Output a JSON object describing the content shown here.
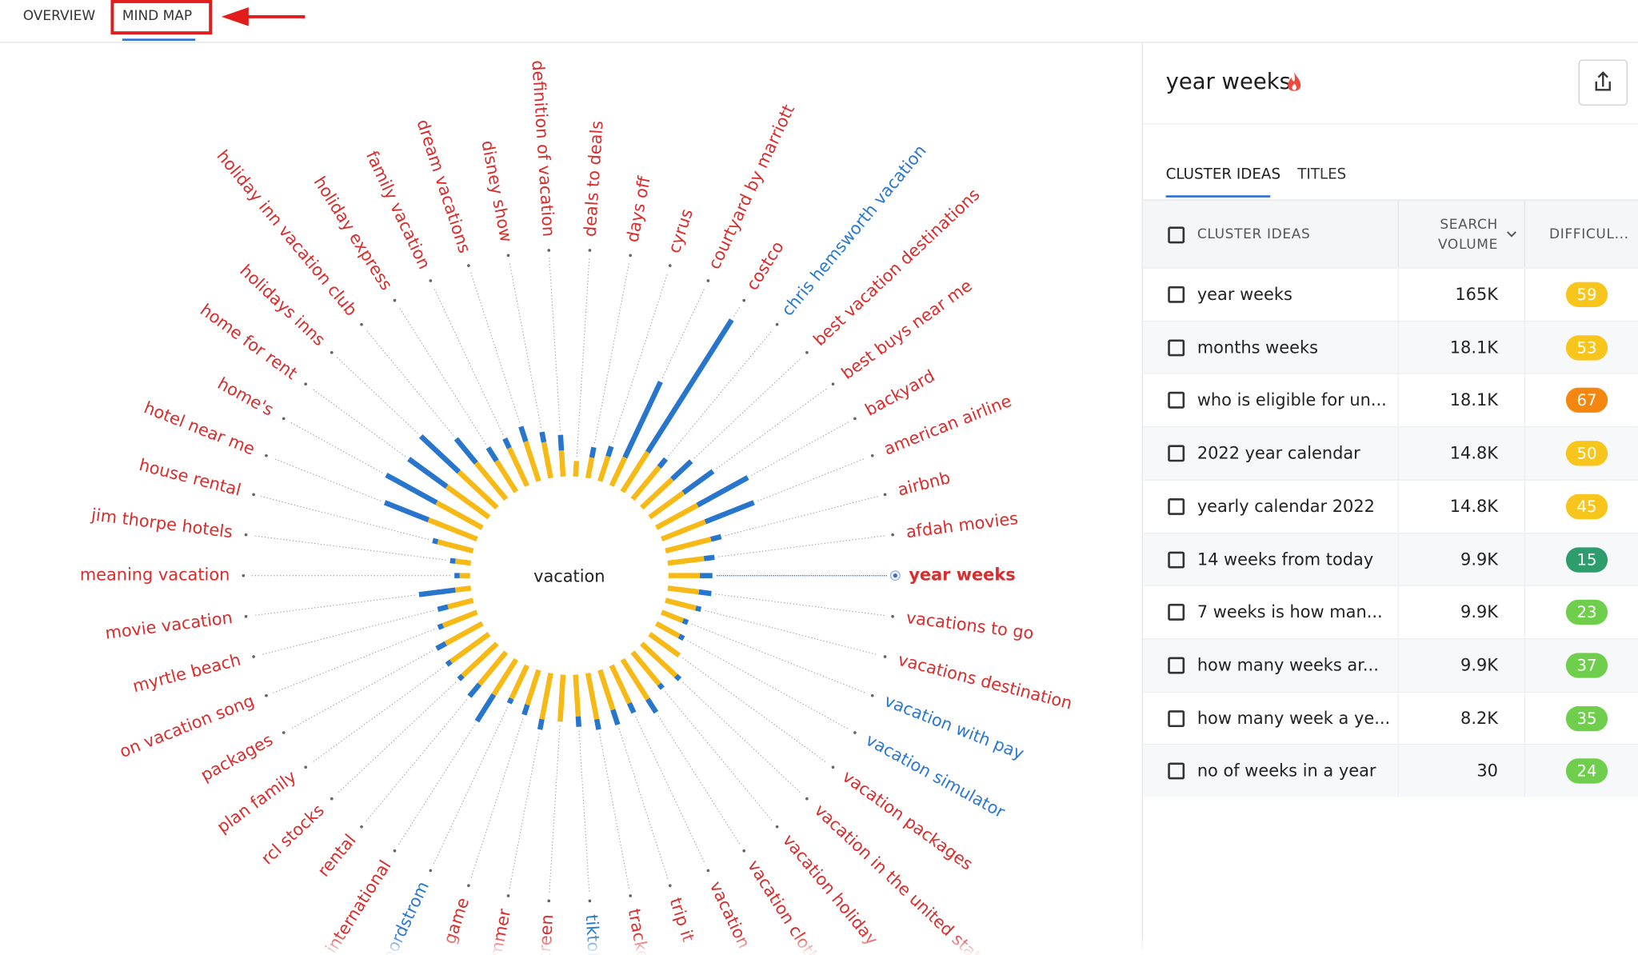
{
  "tabs": [
    "OVERVIEW",
    "MIND MAP"
  ],
  "mindmap": {
    "center": "vacation",
    "spokes": [
      {
        "label": "year weeks",
        "color": "#d92d2d",
        "yellow": 30,
        "blue": 12,
        "selected": true
      },
      {
        "label": "vacations to go",
        "color": "#d92d2d",
        "yellow": 30,
        "blue": 12
      },
      {
        "label": "vacations destination",
        "color": "#d92d2d",
        "yellow": 30,
        "blue": 5
      },
      {
        "label": "vacation with pay",
        "color": "#2b78d0",
        "yellow": 22,
        "blue": 5
      },
      {
        "label": "vacation simulator",
        "color": "#2b78d0",
        "yellow": 25,
        "blue": 5
      },
      {
        "label": "vacation packages",
        "color": "#d92d2d",
        "yellow": 35,
        "blue": 0
      },
      {
        "label": "vacation in the united states",
        "color": "#d92d2d",
        "yellow": 45,
        "blue": 5
      },
      {
        "label": "vacation holiday",
        "color": "#d92d2d",
        "yellow": 40,
        "blue": 5
      },
      {
        "label": "vacation clothes",
        "color": "#d92d2d",
        "yellow": 45,
        "blue": 15
      },
      {
        "label": "vacation",
        "color": "#d92d2d",
        "yellow": 40,
        "blue": 10
      },
      {
        "label": "trip it",
        "color": "#d92d2d",
        "yellow": 40,
        "blue": 15
      },
      {
        "label": "tracker",
        "color": "#d92d2d",
        "yellow": 45,
        "blue": 10
      },
      {
        "label": "tiktok",
        "color": "#2b78d0",
        "yellow": 40,
        "blue": 10
      },
      {
        "label": "screen",
        "color": "#d92d2d",
        "yellow": 45,
        "blue": 0
      },
      {
        "label": "summer",
        "color": "#d92d2d",
        "yellow": 45,
        "blue": 10
      },
      {
        "label": "game",
        "color": "#d92d2d",
        "yellow": 35,
        "blue": 10
      },
      {
        "label": "nordstrom",
        "color": "#2b78d0",
        "yellow": 35,
        "blue": 5
      },
      {
        "label": "international",
        "color": "#d92d2d",
        "yellow": 40,
        "blue": 30
      },
      {
        "label": "rental",
        "color": "#d92d2d",
        "yellow": 40,
        "blue": 15
      },
      {
        "label": "rcl stocks",
        "color": "#d92d2d",
        "yellow": 45,
        "blue": 5
      },
      {
        "label": "plan family",
        "color": "#d92d2d",
        "yellow": 45,
        "blue": 5
      },
      {
        "label": "packages",
        "color": "#d92d2d",
        "yellow": 40,
        "blue": 10
      },
      {
        "label": "on vacation song",
        "color": "#d92d2d",
        "yellow": 35,
        "blue": 5
      },
      {
        "label": "myrtle beach",
        "color": "#d92d2d",
        "yellow": 25,
        "blue": 10
      },
      {
        "label": "movie vacation",
        "color": "#d92d2d",
        "yellow": 15,
        "blue": 35
      },
      {
        "label": "meaning vacation",
        "color": "#d92d2d",
        "yellow": 10,
        "blue": 5
      },
      {
        "label": "jim thorpe hotels",
        "color": "#d92d2d",
        "yellow": 15,
        "blue": 5
      },
      {
        "label": "house rental",
        "color": "#d92d2d",
        "yellow": 35,
        "blue": 5
      },
      {
        "label": "hotel near me",
        "color": "#d92d2d",
        "yellow": 50,
        "blue": 45
      },
      {
        "label": "home's",
        "color": "#d92d2d",
        "yellow": 50,
        "blue": 55
      },
      {
        "label": "home for rent",
        "color": "#d92d2d",
        "yellow": 50,
        "blue": 45
      },
      {
        "label": "holidays inns",
        "color": "#d92d2d",
        "yellow": 50,
        "blue": 50
      },
      {
        "label": "holiday inn vacation club",
        "color": "#d92d2d",
        "yellow": 45,
        "blue": 30
      },
      {
        "label": "holiday express",
        "color": "#d92d2d",
        "yellow": 35,
        "blue": 15
      },
      {
        "label": "family vacation",
        "color": "#d92d2d",
        "yellow": 40,
        "blue": 10
      },
      {
        "label": "dream vacations",
        "color": "#d92d2d",
        "yellow": 40,
        "blue": 15
      },
      {
        "label": "disney show",
        "color": "#d92d2d",
        "yellow": 35,
        "blue": 10
      },
      {
        "label": "definition of vacation",
        "color": "#d92d2d",
        "yellow": 25,
        "blue": 15
      },
      {
        "label": "deals to deals",
        "color": "#d92d2d",
        "yellow": 15,
        "blue": 0
      },
      {
        "label": "days off",
        "color": "#d92d2d",
        "yellow": 20,
        "blue": 10
      },
      {
        "label": "cyrus",
        "color": "#d92d2d",
        "yellow": 25,
        "blue": 10
      },
      {
        "label": "courtyard by marriott",
        "color": "#d92d2d",
        "yellow": 30,
        "blue": 80
      },
      {
        "label": "costco",
        "color": "#d92d2d",
        "yellow": 45,
        "blue": 150
      },
      {
        "label": "chris hemsworth vacation",
        "color": "#2b78d0",
        "yellow": 40,
        "blue": 10
      },
      {
        "label": "best vacation destinations",
        "color": "#d92d2d",
        "yellow": 40,
        "blue": 25
      },
      {
        "label": "best buys near me",
        "color": "#d92d2d",
        "yellow": 40,
        "blue": 35
      },
      {
        "label": "backyard",
        "color": "#d92d2d",
        "yellow": 45,
        "blue": 55
      },
      {
        "label": "american airline",
        "color": "#d92d2d",
        "yellow": 45,
        "blue": 50
      },
      {
        "label": "airbnb",
        "color": "#d92d2d",
        "yellow": 45,
        "blue": 10
      },
      {
        "label": "afdah movies",
        "color": "#d92d2d",
        "yellow": 35,
        "blue": 10
      }
    ]
  },
  "panel": {
    "title": "year weeks",
    "tabs": [
      "CLUSTER IDEAS",
      "TITLES"
    ],
    "columns": [
      "CLUSTER IDEAS",
      "SEARCH VOLUME",
      "DIFFICUL..."
    ],
    "rows": [
      [
        "year weeks",
        "165K",
        59
      ],
      [
        "months weeks",
        "18.1K",
        53
      ],
      [
        "who is eligible for un...",
        "18.1K",
        67
      ],
      [
        "2022 year calendar",
        "14.8K",
        50
      ],
      [
        "yearly calendar 2022",
        "14.8K",
        45
      ],
      [
        "14 weeks from today",
        "9.9K",
        15
      ],
      [
        "7 weeks is how man...",
        "9.9K",
        23
      ],
      [
        "how many weeks ar...",
        "9.9K",
        37
      ],
      [
        "how many week a ye...",
        "8.2K",
        35
      ],
      [
        "no of weeks in a year",
        "30",
        24
      ]
    ]
  }
}
